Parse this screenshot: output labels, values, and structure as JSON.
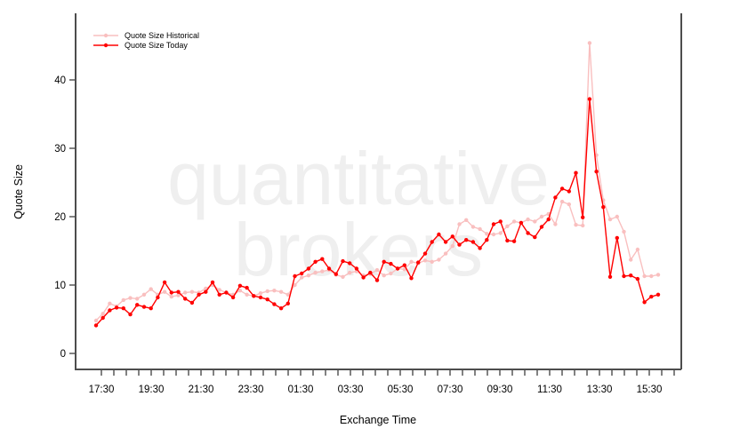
{
  "watermark": {
    "line1": "quantitative",
    "line2": "brokers"
  },
  "colors": {
    "background": "#ffffff",
    "axis": "#4d4d4d",
    "text": "#000000",
    "watermark": "#efefef",
    "historical": "#f9bfbf",
    "today": "#ff0000"
  },
  "chart_data": {
    "type": "line",
    "title": "",
    "xlabel": "Exchange Time",
    "ylabel": "Quote Size",
    "x_tick_labels": [
      "17:30",
      "19:30",
      "21:30",
      "23:30",
      "01:30",
      "03:30",
      "05:30",
      "07:30",
      "09:30",
      "11:30",
      "13:30",
      "15:30"
    ],
    "minor_ticks_per_major": 4,
    "y_ticks": [
      0,
      10,
      20,
      30,
      40
    ],
    "ylim": [
      0,
      47
    ],
    "grid": false,
    "legend_position": "top-left",
    "points_evenly_spaced": true,
    "series": [
      {
        "name": "Quote Size Historical",
        "color": "#f9bfbf",
        "values": [
          4.8,
          5.8,
          7.3,
          6.9,
          7.8,
          8.1,
          8.0,
          8.6,
          9.4,
          8.6,
          9.0,
          8.3,
          8.5,
          8.9,
          9.0,
          8.9,
          9.5,
          10.0,
          9.3,
          8.9,
          8.6,
          9.2,
          8.6,
          8.4,
          8.8,
          9.1,
          9.2,
          9.0,
          8.6,
          10.0,
          11.1,
          11.4,
          11.8,
          12.0,
          12.2,
          11.5,
          11.2,
          11.8,
          12.0,
          11.4,
          11.6,
          12.2,
          11.4,
          11.7,
          12.4,
          12.3,
          13.4,
          13.2,
          13.6,
          13.4,
          13.7,
          14.6,
          15.7,
          18.9,
          19.5,
          18.5,
          18.2,
          17.5,
          17.4,
          17.6,
          18.6,
          19.3,
          19.1,
          19.6,
          19.3,
          20.0,
          20.4,
          18.9,
          22.2,
          21.8,
          18.8,
          18.7,
          45.4,
          29.0,
          22.4,
          19.6,
          20.0,
          17.8,
          13.7,
          15.2,
          11.3,
          11.3,
          11.5
        ]
      },
      {
        "name": "Quote Size Today",
        "color": "#ff0000",
        "values": [
          4.1,
          5.2,
          6.3,
          6.7,
          6.6,
          5.7,
          7.1,
          6.8,
          6.6,
          8.2,
          10.4,
          8.9,
          9.0,
          8.0,
          7.4,
          8.6,
          9.0,
          10.4,
          8.6,
          8.9,
          8.2,
          9.9,
          9.6,
          8.4,
          8.2,
          7.9,
          7.2,
          6.6,
          7.3,
          11.3,
          11.7,
          12.4,
          13.4,
          13.8,
          12.4,
          11.6,
          13.5,
          13.2,
          12.4,
          11.1,
          11.8,
          10.7,
          13.4,
          13.1,
          12.4,
          12.9,
          11.0,
          13.3,
          14.6,
          16.3,
          17.4,
          16.3,
          17.1,
          15.9,
          16.6,
          16.3,
          15.4,
          16.6,
          18.9,
          19.3,
          16.5,
          16.4,
          19.1,
          17.6,
          17.0,
          18.5,
          19.6,
          22.8,
          24.1,
          23.7,
          26.4,
          19.9,
          37.2,
          26.6,
          21.4,
          11.2,
          16.9,
          11.3,
          11.4,
          10.9,
          7.5,
          8.3,
          8.6
        ]
      }
    ]
  }
}
